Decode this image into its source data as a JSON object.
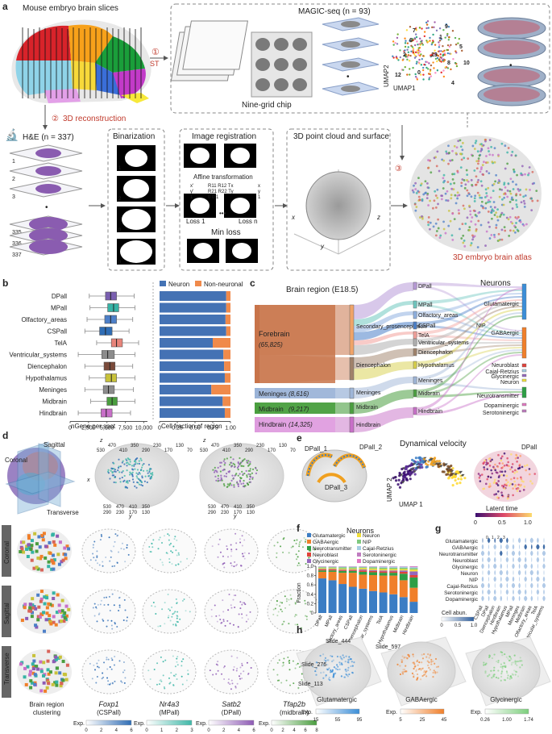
{
  "panel_a": {
    "label": "a",
    "slices_title": "Mouse embryo brain slices",
    "magic_title": "MAGIC-seq (n = 93)",
    "nine_grid": "Nine-grid chip",
    "step1": "①",
    "st": "ST",
    "step2": "②",
    "reconstruction": "3D reconstruction",
    "he_title": "H&E (n = 337)",
    "slice_nums": [
      "1",
      "2",
      "3",
      "335",
      "336",
      "337"
    ],
    "binarization": "Binarization",
    "bin_nums": [
      "1",
      "2",
      "n"
    ],
    "image_registration": "Image registration",
    "affine": "Affine transformation",
    "matrix_lhs": [
      "x'",
      "y'",
      "1"
    ],
    "matrix_rows": [
      "R11  R12  Tx",
      "R21  R22  Ty",
      "0    0    1"
    ],
    "matrix_rhs": [
      "x",
      "y",
      "1"
    ],
    "loss1": "Loss 1",
    "lossn": "Loss n",
    "ellipsis": "•••",
    "min_loss": "Min loss",
    "point_cloud": "3D point cloud and surface",
    "axis_x": "x",
    "axis_y": "y",
    "axis_z": "z",
    "step3": "③",
    "atlas": "3D embryo brain atlas",
    "umap1": "UMAP1",
    "umap2": "UMAP2",
    "umap_clusters": [
      "0",
      "1",
      "2",
      "4",
      "5",
      "6",
      "7",
      "8",
      "9",
      "10",
      "12",
      "13"
    ]
  },
  "panel_b": {
    "label": "b",
    "legend_neuron": "Neuron",
    "legend_nonneuronal": "Non-neuronal",
    "xlabel_left": "nGene per spot",
    "xlabel_right": "Cell fraction of region",
    "left_ticks": [
      "0",
      "2,500",
      "5,000",
      "7,500",
      "10,000"
    ],
    "right_ticks": [
      "0",
      "0.25",
      "0.50",
      "0.75",
      "1.00"
    ]
  },
  "panel_c": {
    "label": "c",
    "title": "Brain region (E18.5)",
    "neurons_title": "Neurons",
    "level1": [
      {
        "name": "Forebrain",
        "count": "(65,825)"
      },
      {
        "name": "Meninges",
        "count": "(8,616)"
      },
      {
        "name": "Midbrain",
        "count": "(9,217)"
      },
      {
        "name": "Hindbrain",
        "count": "(14,325)"
      }
    ],
    "level2": [
      "Secondary_prosencephalon",
      "Diencephalon",
      "Meninges",
      "Midbrain",
      "Hindbrain"
    ],
    "level3": [
      "DPall",
      "MPall",
      "Olfactory_areas",
      "CSPall",
      "TelA",
      "Ventricular_systems",
      "Diencephalon",
      "Hypothalamus",
      "Meninges",
      "Midbrain",
      "Hindbrain"
    ],
    "level4": [
      "Glutamatergic",
      "GABAergic",
      "Neuroblast",
      "Cajal-Retzius",
      "Glycinergic",
      "Neuron",
      "Neurotransmitter",
      "Dopaminergic",
      "Serotoninergic"
    ],
    "nip": "NIP"
  },
  "panel_d": {
    "label": "d",
    "coronal": "Coronal",
    "sagittal": "Sagittal",
    "transverse": "Transverse",
    "row_labels": [
      "Coronal",
      "Sagittal",
      "Transverse"
    ],
    "axis_ticks_1": [
      "530",
      "470",
      "410",
      "350",
      "290",
      "230",
      "170",
      "130",
      "70"
    ],
    "axis_ticks_2": [
      "530",
      "470",
      "410",
      "350",
      "290",
      "230",
      "170",
      "130",
      "70"
    ],
    "bottom_ticks": [
      "530",
      "470",
      "410",
      "350",
      "290",
      "230",
      "170",
      "130"
    ],
    "axis_z": "z",
    "axis_x": "x",
    "axis_y": "y",
    "clustering": "Brain region\nclustering",
    "clustering_l1": "Brain region",
    "clustering_l2": "clustering",
    "genes": [
      {
        "gene": "Foxp1",
        "region": "(CSPall)",
        "color": "#2f6db5",
        "ticks": [
          "0",
          "2",
          "4",
          "6"
        ]
      },
      {
        "gene": "Nr4a3",
        "region": "(MPall)",
        "color": "#3fb8a8",
        "ticks": [
          "0",
          "1",
          "2",
          "3"
        ]
      },
      {
        "gene": "Satb2",
        "region": "(DPall)",
        "color": "#8e5bb5",
        "ticks": [
          "0",
          "2",
          "4",
          "6"
        ]
      },
      {
        "gene": "Tfap2b",
        "region": "(midbrain)",
        "color": "#4a9e3f",
        "ticks": [
          "0",
          "2",
          "4",
          "6",
          "8"
        ]
      }
    ],
    "exp_label": "Exp."
  },
  "panel_e": {
    "label": "e",
    "dpall1": "DPall_1",
    "dpall2": "DPall_2",
    "dpall3": "DPall_3",
    "velocity": "Dynamical velocity",
    "umap1": "UMAP 1",
    "umap2": "UMAP 2",
    "dpall": "DPall",
    "latent": "Latent time",
    "latent_ticks": [
      "0",
      "0.5",
      "1.0"
    ]
  },
  "panel_f": {
    "label": "f",
    "neurons": "Neurons",
    "ylabel": "Fraction",
    "legend": [
      {
        "name": "Glutamatergic",
        "color": "#3b7dc4"
      },
      {
        "name": "Neuron",
        "color": "#f2e03a"
      },
      {
        "name": "GABAergic",
        "color": "#f07f2a"
      },
      {
        "name": "NIP",
        "color": "#7fc97f"
      },
      {
        "name": "Neurotransmitter",
        "color": "#2e9e45"
      },
      {
        "name": "Cajal-Retzius",
        "color": "#a6cee3"
      },
      {
        "name": "Neuroblast",
        "color": "#e0413a"
      },
      {
        "name": "Serotoninergic",
        "color": "#c07cc0"
      },
      {
        "name": "Glycinergic",
        "color": "#9467bd"
      },
      {
        "name": "Dopaminergic",
        "color": "#e377c2"
      }
    ],
    "yticks": [
      "0",
      "0.2",
      "0.4",
      "0.6",
      "0.8",
      "1.0"
    ]
  },
  "panel_g": {
    "label": "g",
    "rows": [
      "Glutamatergic",
      "GABAergic",
      "Neurotransmitter",
      "Neuroblast",
      "Glycinergic",
      "Neuron",
      "NIP",
      "Cajal-Retzius",
      "Serotoninergic",
      "Dopaminergic"
    ],
    "cols": [
      "CSPall",
      "DPall",
      "Diencephalon",
      "Hindbrain",
      "Hypothalamus",
      "MPall",
      "Meninges",
      "Midbrain",
      "Olfactory_areas",
      "TelA",
      "Ventricular_systems"
    ],
    "cell_abun": "Cell abun.",
    "scale_ticks": [
      "0",
      "0.5",
      "1.0"
    ],
    "col_nums": [
      "0",
      "1",
      "2",
      "3"
    ]
  },
  "panel_h": {
    "label": "h",
    "slides": [
      "Slide_444",
      "Slide_597",
      "Slide_276",
      "Slide_113"
    ],
    "types": [
      {
        "name": "Glutamatergic",
        "color": "#3b8ed8",
        "ticks": [
          "15",
          "55",
          "95"
        ]
      },
      {
        "name": "GABAergic",
        "color": "#f07f2a",
        "ticks": [
          "5",
          "25",
          "45"
        ]
      },
      {
        "name": "Glycinergic",
        "color": "#7dcf7d",
        "ticks": [
          "0.26",
          "1.00",
          "1.74"
        ]
      }
    ],
    "exp_label": "Exp."
  },
  "chart_data": [
    {
      "type": "boxplot",
      "title": "",
      "xlabel": "nGene per spot",
      "categories": [
        "DPall",
        "MPall",
        "Olfactory_areas",
        "CSPall",
        "TelA",
        "Ventricular_systems",
        "Diencephalon",
        "Hypothalamus",
        "Meninges",
        "Midbrain",
        "Hindbrain"
      ],
      "colors": [
        "#7a5fb0",
        "#36b3a5",
        "#4d7fc8",
        "#2f6db5",
        "#e8847a",
        "#8c8c8c",
        "#7a4a3a",
        "#c8c23a",
        "#8c8c8c",
        "#4a9e3f",
        "#c86fc8"
      ],
      "whisker_low": [
        2600,
        2700,
        2300,
        2000,
        3600,
        1100,
        2000,
        2600,
        2000,
        2800,
        1100
      ],
      "q1": [
        4800,
        5100,
        4700,
        4000,
        5600,
        4300,
        4600,
        4800,
        4500,
        5000,
        4200
      ],
      "median": [
        5500,
        5900,
        5500,
        4800,
        6300,
        5100,
        5400,
        5600,
        5200,
        5700,
        4900
      ],
      "q3": [
        6300,
        6600,
        6300,
        5700,
        7100,
        6000,
        6100,
        6300,
        6000,
        6400,
        5700
      ],
      "whisker_high": [
        8700,
        8800,
        8500,
        8000,
        9300,
        8800,
        8500,
        8800,
        8600,
        8800,
        8200
      ],
      "xlim": [
        0,
        10500
      ]
    },
    {
      "type": "bar",
      "stacked": true,
      "orientation": "horizontal",
      "xlabel": "Cell fraction of region",
      "categories": [
        "DPall",
        "MPall",
        "Olfactory_areas",
        "CSPall",
        "TelA",
        "Ventricular_systems",
        "Diencephalon",
        "Hypothalamus",
        "Meninges",
        "Midbrain",
        "Hindbrain"
      ],
      "series": [
        {
          "name": "Neuron",
          "color": "#4472b4",
          "values": [
            0.94,
            0.94,
            0.93,
            0.94,
            0.75,
            0.9,
            0.91,
            0.92,
            0.73,
            0.89,
            0.92
          ]
        },
        {
          "name": "Non-neuronal",
          "color": "#f08a4b",
          "values": [
            0.06,
            0.06,
            0.07,
            0.06,
            0.25,
            0.1,
            0.09,
            0.08,
            0.27,
            0.11,
            0.08
          ]
        }
      ],
      "xlim": [
        0,
        1
      ]
    },
    {
      "type": "bar",
      "stacked": true,
      "ylabel": "Fraction",
      "categories": [
        "DPall",
        "MPall",
        "Olfactory_areas",
        "CSPall",
        "Diencephalon",
        "Ventricular_systems",
        "TelA",
        "Hypothalamus",
        "Midbrain",
        "Hindbrain"
      ],
      "series": [
        {
          "name": "Glutamatergic",
          "values": [
            0.74,
            0.7,
            0.62,
            0.56,
            0.52,
            0.47,
            0.44,
            0.4,
            0.34,
            0.24
          ]
        },
        {
          "name": "GABAergic",
          "values": [
            0.14,
            0.18,
            0.24,
            0.3,
            0.3,
            0.34,
            0.36,
            0.4,
            0.36,
            0.3
          ]
        },
        {
          "name": "Neurotransmitter",
          "values": [
            0.03,
            0.03,
            0.04,
            0.04,
            0.06,
            0.06,
            0.06,
            0.06,
            0.14,
            0.22
          ]
        },
        {
          "name": "Neuroblast",
          "values": [
            0.02,
            0.02,
            0.02,
            0.02,
            0.03,
            0.03,
            0.03,
            0.03,
            0.04,
            0.05
          ]
        },
        {
          "name": "Glycinergic",
          "values": [
            0.01,
            0.01,
            0.01,
            0.01,
            0.02,
            0.02,
            0.02,
            0.02,
            0.03,
            0.08
          ]
        },
        {
          "name": "Neuron",
          "values": [
            0.02,
            0.02,
            0.02,
            0.02,
            0.03,
            0.03,
            0.03,
            0.03,
            0.03,
            0.04
          ]
        },
        {
          "name": "NIP",
          "values": [
            0.02,
            0.02,
            0.03,
            0.03,
            0.02,
            0.03,
            0.03,
            0.03,
            0.03,
            0.03
          ]
        },
        {
          "name": "Cajal-Retzius",
          "values": [
            0.01,
            0.01,
            0.01,
            0.01,
            0.01,
            0.01,
            0.02,
            0.02,
            0.02,
            0.02
          ]
        },
        {
          "name": "Serotoninergic",
          "values": [
            0.005,
            0.005,
            0.005,
            0.005,
            0.005,
            0.005,
            0.005,
            0.005,
            0.005,
            0.01
          ]
        },
        {
          "name": "Dopaminergic",
          "values": [
            0.005,
            0.005,
            0.005,
            0.005,
            0.005,
            0.005,
            0.005,
            0.005,
            0.005,
            0.01
          ]
        }
      ],
      "ylim": [
        0,
        1
      ]
    }
  ]
}
